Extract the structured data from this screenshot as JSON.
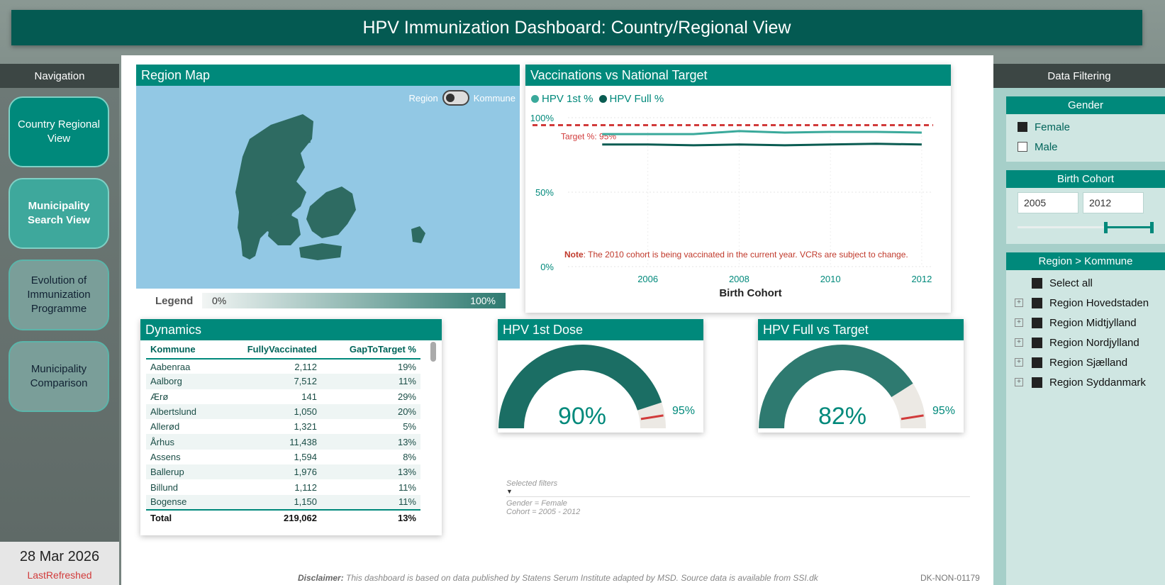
{
  "header": {
    "title": "HPV Immunization Dashboard: Country/Regional View"
  },
  "navigation": {
    "title": "Navigation",
    "items": [
      {
        "label": "Country Regional View",
        "state": "active"
      },
      {
        "label": "Municipality Search View",
        "state": "hover"
      },
      {
        "label": "Evolution of Immunization Programme",
        "state": "inactive"
      },
      {
        "label": "Municipality Comparison",
        "state": "inactive"
      }
    ],
    "date": "28 Mar 2026",
    "date_label": "LastRefreshed"
  },
  "region_map": {
    "title": "Region Map",
    "toggle_left": "Region",
    "toggle_right": "Kommune",
    "legend_label": "Legend",
    "legend_min": "0%",
    "legend_max": "100%",
    "colors": {
      "land": "#2e6b62",
      "sea": "#92c8e4"
    }
  },
  "line_chart": {
    "title": "Vaccinations vs National Target",
    "target_label": "Target %: 95%",
    "note_bold": "Note",
    "note_text": ": The 2010 cohort is being vaccinated in the current year. VCRs are subject to change."
  },
  "chart_data": [
    {
      "type": "line",
      "title": "Vaccinations vs National Target",
      "xlabel": "Birth Cohort",
      "ylabel": "",
      "x": [
        2005,
        2006,
        2007,
        2008,
        2009,
        2010,
        2011,
        2012
      ],
      "xticks": [
        "2006",
        "2008",
        "2010",
        "2012"
      ],
      "yticks": [
        "0%",
        "50%",
        "100%"
      ],
      "ylim": [
        0,
        100
      ],
      "target": 95,
      "legend_position": "top-left",
      "series": [
        {
          "name": "HPV 1st %",
          "color": "#3aa99b",
          "values": [
            89,
            89,
            89,
            91,
            90,
            90.5,
            90.5,
            90
          ]
        },
        {
          "name": "HPV Full %",
          "color": "#0a5c52",
          "values": [
            82,
            82,
            81.5,
            82,
            81.5,
            82,
            82.5,
            82
          ]
        }
      ]
    },
    {
      "type": "gauge",
      "title": "HPV 1st Dose",
      "value": 90,
      "value_label": "90%",
      "target": 95,
      "target_label": "95%",
      "min": 0,
      "max": 100,
      "color": "#1b6e64"
    },
    {
      "type": "gauge",
      "title": "HPV Full vs Target",
      "value": 82,
      "value_label": "82%",
      "target": 95,
      "target_label": "95%",
      "min": 0,
      "max": 100,
      "color": "#2e7a70"
    }
  ],
  "dynamics": {
    "title": "Dynamics",
    "columns": [
      "Kommune",
      "FullyVaccinated",
      "GapToTarget %"
    ],
    "rows": [
      [
        "Aabenraa",
        "2,112",
        "19%"
      ],
      [
        "Aalborg",
        "7,512",
        "11%"
      ],
      [
        "Ærø",
        "141",
        "29%"
      ],
      [
        "Albertslund",
        "1,050",
        "20%"
      ],
      [
        "Allerød",
        "1,321",
        "5%"
      ],
      [
        "Århus",
        "11,438",
        "13%"
      ],
      [
        "Assens",
        "1,594",
        "8%"
      ],
      [
        "Ballerup",
        "1,976",
        "13%"
      ],
      [
        "Billund",
        "1,112",
        "11%"
      ],
      [
        "Bogense",
        "1,150",
        "11%"
      ]
    ],
    "total": [
      "Total",
      "219,062",
      "13%"
    ]
  },
  "selected_filters": {
    "title": "Selected filters",
    "lines": [
      "Gender = Female",
      "Cohort = 2005 - 2012"
    ]
  },
  "filters": {
    "title": "Data Filtering",
    "gender": {
      "title": "Gender",
      "options": [
        {
          "label": "Female",
          "checked": true
        },
        {
          "label": "Male",
          "checked": false
        }
      ]
    },
    "cohort": {
      "title": "Birth Cohort",
      "from": "2005",
      "to": "2012"
    },
    "region": {
      "title": "Region > Kommune",
      "select_all": "Select all",
      "items": [
        "Region Hovedstaden",
        "Region Midtjylland",
        "Region Nordjylland",
        "Region Sjælland",
        "Region Syddanmark"
      ]
    }
  },
  "footer": {
    "disclaimer_bold": "Disclaimer:",
    "disclaimer_text": " This dashboard is based on data published by Statens Serum Institute adapted by MSD. Source data is available from SSI.dk",
    "code": "DK-NON-01179"
  }
}
